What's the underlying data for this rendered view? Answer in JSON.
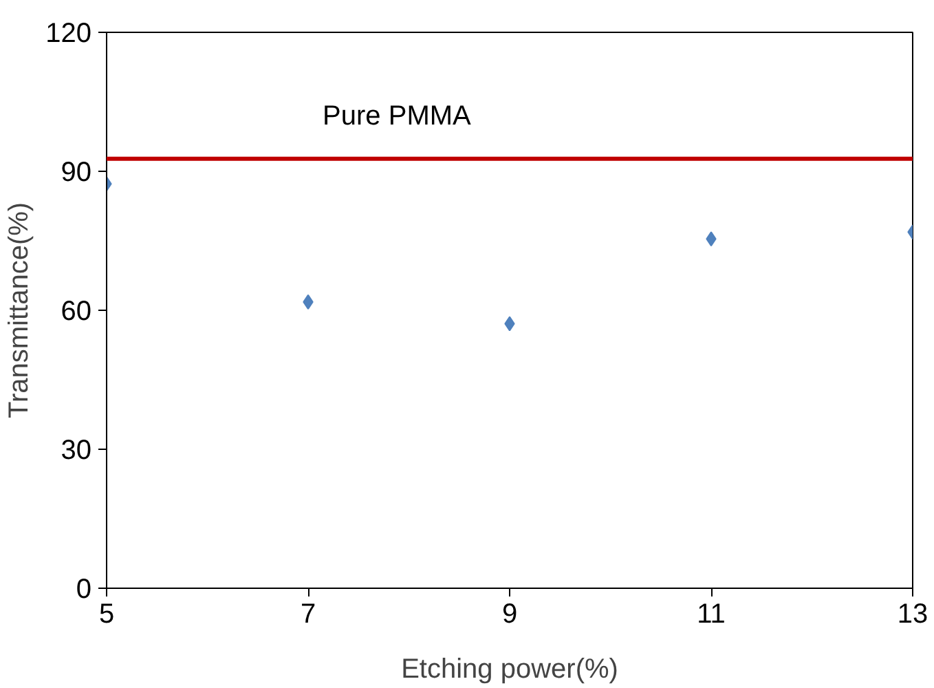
{
  "chart_data": {
    "type": "scatter",
    "xlabel": "Etching power(%)",
    "ylabel": "Transmittance(%)",
    "x": [
      5,
      7,
      9,
      11,
      13
    ],
    "series": [
      {
        "color": "#4f81bd",
        "values": [
          87.3,
          61.8,
          57.1,
          75.4,
          76.9
        ]
      }
    ],
    "marker": "diamond",
    "xlim": [
      5,
      13
    ],
    "xticks": [
      5,
      7,
      9,
      11,
      13
    ],
    "ylim": [
      0,
      120
    ],
    "yticks": [
      0,
      30,
      60,
      90,
      120
    ],
    "grid": false,
    "ref_lines": [
      {
        "axis": "y",
        "value": 92.7,
        "color": "#c00000",
        "label": "Pure PMMA"
      }
    ]
  }
}
